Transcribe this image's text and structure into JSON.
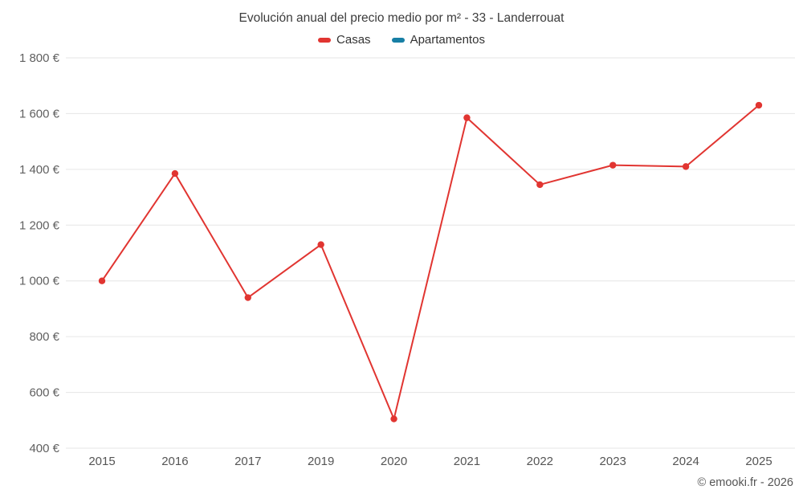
{
  "title": "Evolución anual del precio medio por m² - 33 - Landerrouat",
  "legend": [
    {
      "label": "Casas",
      "color": "#e13531"
    },
    {
      "label": "Apartamentos",
      "color": "#177fa5"
    }
  ],
  "footer": "© emooki.fr - 2026",
  "chart_data": {
    "type": "line",
    "title": "Evolución anual del precio medio por m² - 33 - Landerrouat",
    "categories": [
      "2015",
      "2016",
      "2017",
      "2019",
      "2020",
      "2021",
      "2022",
      "2023",
      "2024",
      "2025"
    ],
    "series": [
      {
        "name": "Casas",
        "color": "#e13531",
        "values": [
          1000,
          1385,
          940,
          1130,
          505,
          1585,
          1345,
          1415,
          1410,
          1630
        ]
      },
      {
        "name": "Apartamentos",
        "color": "#177fa5",
        "values": []
      }
    ],
    "xlabel": "",
    "ylabel": "",
    "ylim": [
      400,
      1800
    ],
    "ytick_step": 200,
    "ytick_suffix": " €",
    "grid": true,
    "gridline_color": "#e6e6e6",
    "legend_position": "top",
    "annotations": []
  }
}
